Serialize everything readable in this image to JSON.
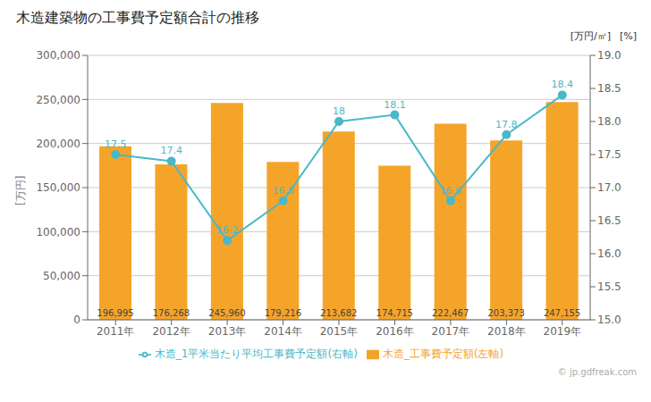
{
  "chart_data": {
    "type": "bar",
    "title": "木造建築物の工事費予定額合計の推移",
    "categories": [
      "2011年",
      "2012年",
      "2013年",
      "2014年",
      "2015年",
      "2016年",
      "2017年",
      "2018年",
      "2019年"
    ],
    "series": [
      {
        "name": "木造_工事費予定額(左軸)",
        "type": "bar",
        "color": "#f5a42a",
        "values": [
          196995,
          176268,
          245960,
          179216,
          213682,
          174715,
          222467,
          203373,
          247155
        ],
        "value_labels": [
          "196,995",
          "176,268",
          "245,960",
          "179,216",
          "213,682",
          "174,715",
          "222,467",
          "203,373",
          "247,155"
        ],
        "data_labels": true
      },
      {
        "name": "木造_1平米当たり平均工事費予定額(右軸)",
        "type": "line",
        "axis": "y2",
        "color": "#4ab8c8",
        "marker": "circle",
        "values": [
          17.5,
          17.4,
          16.2,
          16.8,
          18.0,
          18.1,
          16.8,
          17.8,
          18.4
        ],
        "value_labels": [
          "17.5",
          "17.4",
          "16.2",
          "16.8",
          "18",
          "18.1",
          "16.8",
          "17.8",
          "18.4"
        ],
        "data_labels": true
      }
    ],
    "ylabel": "[万円]",
    "y2label": [
      "[万円/㎡]",
      "[%]"
    ],
    "ylim": [
      0,
      300000
    ],
    "yticks": [
      0,
      {
        "value": 50000,
        "label": "50,000"
      },
      {
        "value": 100000,
        "label": "100,000"
      },
      {
        "value": 150000,
        "label": "150,000"
      },
      {
        "value": 200000,
        "label": "200,000"
      },
      {
        "value": 250000,
        "label": "250,000"
      },
      {
        "value": 300000,
        "label": "300,000"
      }
    ],
    "y2lim": [
      15.0,
      19.0
    ],
    "y2ticks": [
      {
        "value": 15.0,
        "label": "15.0"
      },
      15.5,
      {
        "value": 16.0,
        "label": "16.0"
      },
      16.5,
      {
        "value": 17.0,
        "label": "17.0"
      },
      17.5,
      {
        "value": 18.0,
        "label": "18.0"
      },
      18.5,
      {
        "value": 19.0,
        "label": "19.0"
      }
    ],
    "grid": true,
    "legend": "bottom",
    "annotations": [
      "© jp.gdfreak.com"
    ]
  }
}
